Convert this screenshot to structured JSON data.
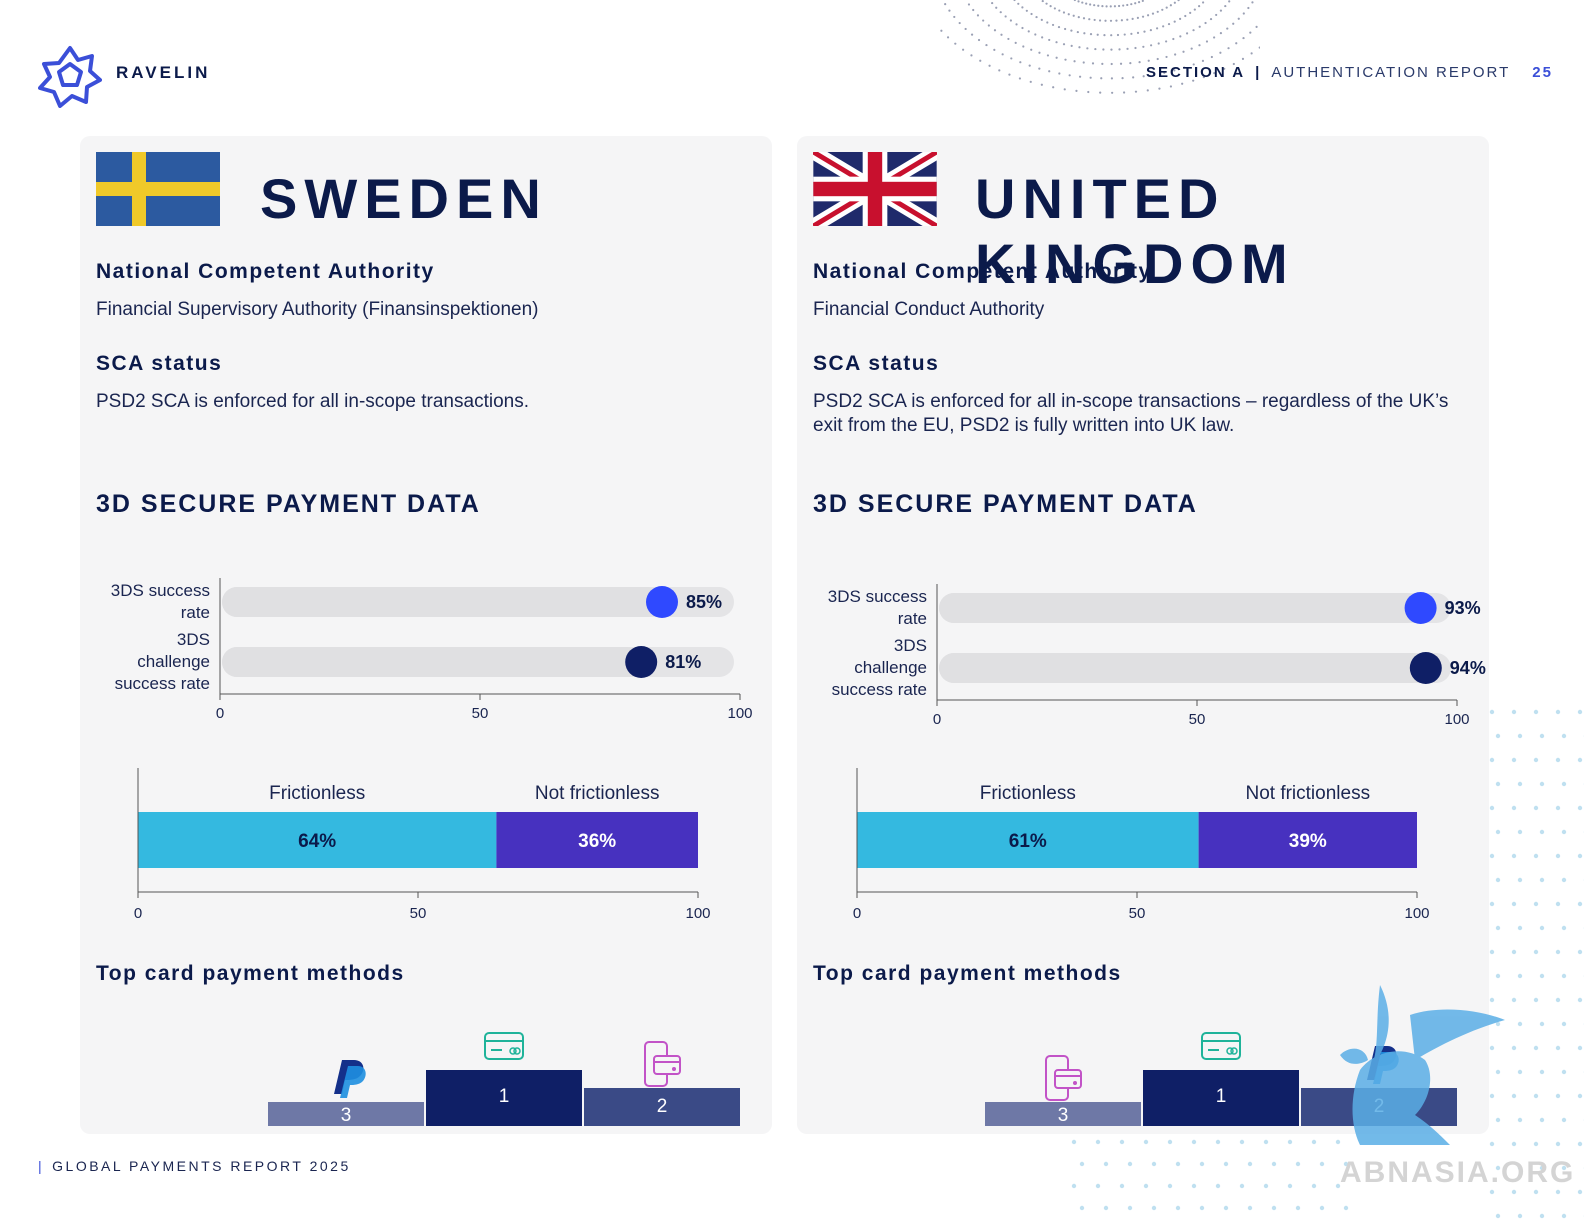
{
  "brand": {
    "name": "RAVELIN",
    "color": "#3b4fd8"
  },
  "header": {
    "section": "SECTION A",
    "divider": "|",
    "report": "AUTHENTICATION REPORT",
    "page": "25"
  },
  "footer": {
    "divider": "|",
    "text": "GLOBAL PAYMENTS REPORT 2025"
  },
  "watermark": "ABNASIA.ORG",
  "colors": {
    "navy": "#0b1a4a",
    "blue": "#2f49ff",
    "cyan": "#34b9e0",
    "purple": "#4731bf",
    "podium1": "#0f1f66",
    "podium2": "#3a4a86",
    "podium3": "#6e78a6"
  },
  "panels": [
    {
      "country": "SWEDEN",
      "flag_icon": "sweden-flag",
      "nca_heading": "National Competent Authority",
      "nca_value": "Financial Supervisory Authority (Finansinspektionen)",
      "sca_heading": "SCA status",
      "sca_value": "PSD2 SCA is enforced for all in-scope transactions.",
      "data_title": "3D SECURE PAYMENT DATA",
      "top_methods_title": "Top card payment methods",
      "podium": [
        {
          "rank": "1",
          "icon": "credit-card-icon"
        },
        {
          "rank": "2",
          "icon": "mobile-wallet-icon"
        },
        {
          "rank": "3",
          "icon": "paypal-icon"
        }
      ]
    },
    {
      "country": "UNITED KINGDOM",
      "flag_icon": "uk-flag",
      "nca_heading": "National Competent Authority",
      "nca_value": "Financial Conduct Authority",
      "sca_heading": "SCA status",
      "sca_value": "PSD2 SCA is enforced for all in-scope transactions – regardless of the UK’s exit from the EU, PSD2 is fully written into UK law.",
      "data_title": "3D SECURE PAYMENT DATA",
      "top_methods_title": "Top card payment methods",
      "podium": [
        {
          "rank": "1",
          "icon": "credit-card-icon"
        },
        {
          "rank": "2",
          "icon": "paypal-icon"
        },
        {
          "rank": "3",
          "icon": "mobile-wallet-icon"
        }
      ]
    }
  ],
  "chart_data": [
    {
      "type": "bar",
      "orientation": "horizontal",
      "categories": [
        "3DS success rate",
        "3DS challenge success rate"
      ],
      "values": [
        85,
        81
      ],
      "value_labels": [
        "85%",
        "81%"
      ],
      "xlim": [
        0,
        100
      ],
      "xticks": [
        "0",
        "50",
        "100"
      ]
    },
    {
      "type": "bar",
      "orientation": "horizontal",
      "stacked": true,
      "series": [
        {
          "name": "Frictionless",
          "values": [
            64
          ],
          "label": "64%"
        },
        {
          "name": "Not frictionless",
          "values": [
            36
          ],
          "label": "36%"
        }
      ],
      "xlim": [
        0,
        100
      ],
      "xticks": [
        "0",
        "50",
        "100"
      ]
    },
    {
      "type": "bar",
      "orientation": "horizontal",
      "categories": [
        "3DS success rate",
        "3DS challenge success rate"
      ],
      "values": [
        93,
        94
      ],
      "value_labels": [
        "93%",
        "94%"
      ],
      "xlim": [
        0,
        100
      ],
      "xticks": [
        "0",
        "50",
        "100"
      ]
    },
    {
      "type": "bar",
      "orientation": "horizontal",
      "stacked": true,
      "series": [
        {
          "name": "Frictionless",
          "values": [
            61
          ],
          "label": "61%"
        },
        {
          "name": "Not frictionless",
          "values": [
            39
          ],
          "label": "39%"
        }
      ],
      "xlim": [
        0,
        100
      ],
      "xticks": [
        "0",
        "50",
        "100"
      ]
    }
  ]
}
